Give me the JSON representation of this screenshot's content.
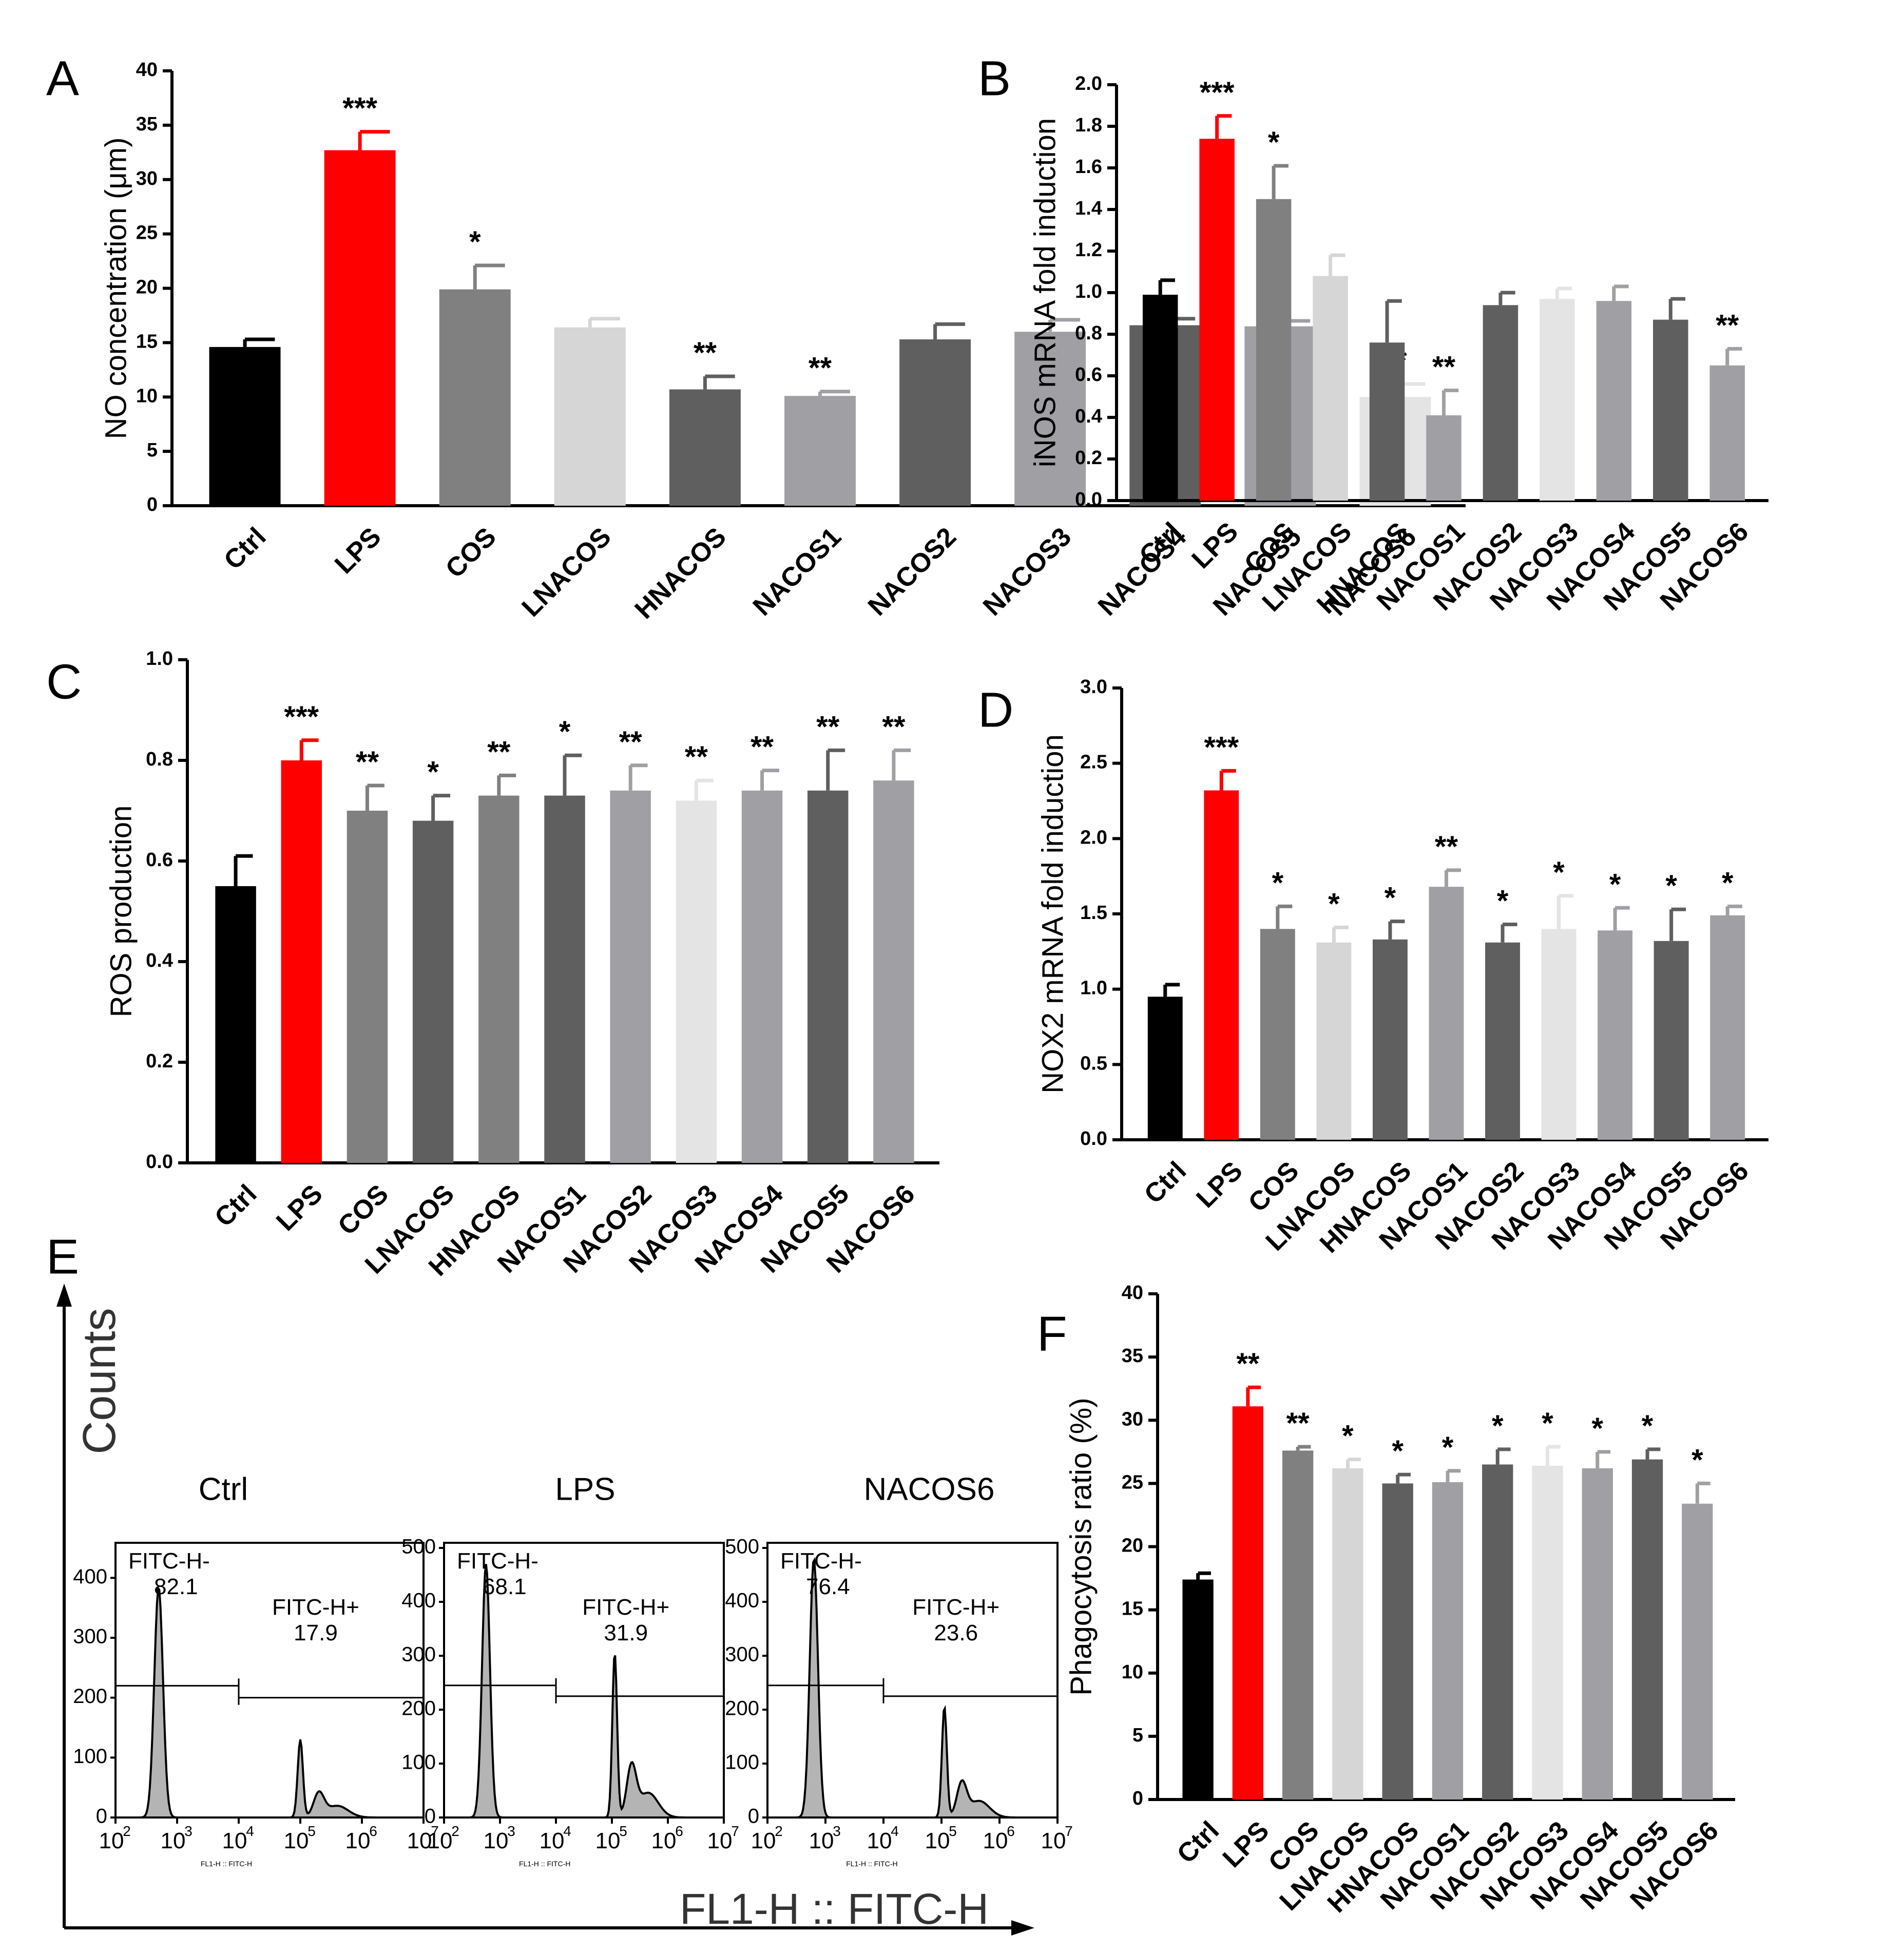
{
  "colors": {
    "black": "#000000",
    "red": "#ff0000",
    "g1": "#808080",
    "g2": "#d6d6d6",
    "g3": "#5f5f5f",
    "g4": "#a0a0a4",
    "g5": "#e4e4e4",
    "hist_fill": "#b4b4b4"
  },
  "chart_data": [
    {
      "panel": "A",
      "type": "bar",
      "ylabel": "NO concentration (μm)",
      "ylim": [
        0,
        40
      ],
      "yticks": [
        "0",
        "5",
        "10",
        "15",
        "20",
        "25",
        "30",
        "35",
        "40"
      ],
      "ytick_values": [
        0,
        5,
        10,
        15,
        20,
        25,
        30,
        35,
        40
      ],
      "categories": [
        "Ctrl",
        "LPS",
        "COS",
        "LNACOS",
        "HNACOS",
        "NACOS1",
        "NACOS2",
        "NACOS3",
        "NACOS4",
        "NACOS5",
        "NACOS6"
      ],
      "values": [
        14.6,
        32.7,
        19.9,
        16.4,
        10.7,
        10.1,
        15.3,
        16.0,
        16.6,
        16.5,
        10.0
      ],
      "errors": [
        0.7,
        1.7,
        2.2,
        0.8,
        1.2,
        0.4,
        1.4,
        1.1,
        0.6,
        0.5,
        1.2
      ],
      "significance": [
        "",
        "***",
        "*",
        "",
        "**",
        "**",
        "",
        "",
        "",
        "",
        "**"
      ],
      "colors": [
        "black",
        "red",
        "g1",
        "g2",
        "g3",
        "g4",
        "g3",
        "g4",
        "g3",
        "g4",
        "g5"
      ]
    },
    {
      "panel": "B",
      "type": "bar",
      "ylabel": "iNOS mRNA fold induction",
      "ylim": [
        0,
        2.0
      ],
      "yticks": [
        "0.0",
        "0.2",
        "0.4",
        "0.6",
        "0.8",
        "1.0",
        "1.2",
        "1.4",
        "1.6",
        "1.8",
        "2.0"
      ],
      "ytick_values": [
        0,
        0.2,
        0.4,
        0.6,
        0.8,
        1.0,
        1.2,
        1.4,
        1.6,
        1.8,
        2.0
      ],
      "categories": [
        "Ctrl",
        "LPS",
        "COS",
        "LNACOS",
        "HNACOS",
        "NACOS1",
        "NACOS2",
        "NACOS3",
        "NACOS4",
        "NACOS5",
        "NACOS6"
      ],
      "values": [
        0.99,
        1.74,
        1.45,
        1.08,
        0.76,
        0.41,
        0.94,
        0.97,
        0.96,
        0.87,
        0.65
      ],
      "errors": [
        0.07,
        0.11,
        0.16,
        0.1,
        0.2,
        0.12,
        0.06,
        0.05,
        0.07,
        0.1,
        0.08
      ],
      "significance": [
        "",
        "***",
        "*",
        "",
        "",
        "**",
        "",
        "",
        "",
        "",
        "**"
      ],
      "colors": [
        "black",
        "red",
        "g1",
        "g2",
        "g3",
        "g4",
        "g3",
        "g5",
        "g4",
        "g3",
        "g4"
      ]
    },
    {
      "panel": "C",
      "type": "bar",
      "ylabel": "ROS production",
      "ylim": [
        0,
        1.0
      ],
      "yticks": [
        "0.0",
        "0.2",
        "0.4",
        "0.6",
        "0.8",
        "1.0"
      ],
      "ytick_values": [
        0,
        0.2,
        0.4,
        0.6,
        0.8,
        1.0
      ],
      "categories": [
        "Ctrl",
        "LPS",
        "COS",
        "LNACOS",
        "HNACOS",
        "NACOS1",
        "NACOS2",
        "NACOS3",
        "NACOS4",
        "NACOS5",
        "NACOS6"
      ],
      "values": [
        0.55,
        0.8,
        0.7,
        0.68,
        0.73,
        0.73,
        0.74,
        0.72,
        0.74,
        0.74,
        0.76
      ],
      "errors": [
        0.06,
        0.04,
        0.05,
        0.05,
        0.04,
        0.08,
        0.05,
        0.04,
        0.04,
        0.08,
        0.06
      ],
      "significance": [
        "",
        "***",
        "**",
        "*",
        "**",
        "*",
        "**",
        "**",
        "**",
        "**",
        "**"
      ],
      "colors": [
        "black",
        "red",
        "g1",
        "g3",
        "g1",
        "g3",
        "g4",
        "g5",
        "g4",
        "g3",
        "g4"
      ]
    },
    {
      "panel": "D",
      "type": "bar",
      "ylabel": "NOX2 mRNA fold induction",
      "ylim": [
        0,
        3.0
      ],
      "yticks": [
        "0.0",
        "0.5",
        "1.0",
        "1.5",
        "2.0",
        "2.5",
        "3.0"
      ],
      "ytick_values": [
        0,
        0.5,
        1.0,
        1.5,
        2.0,
        2.5,
        3.0
      ],
      "categories": [
        "Ctrl",
        "LPS",
        "COS",
        "LNACOS",
        "HNACOS",
        "NACOS1",
        "NACOS2",
        "NACOS3",
        "NACOS4",
        "NACOS5",
        "NACOS6"
      ],
      "values": [
        0.95,
        2.32,
        1.4,
        1.31,
        1.33,
        1.68,
        1.31,
        1.4,
        1.39,
        1.32,
        1.49
      ],
      "errors": [
        0.08,
        0.13,
        0.15,
        0.1,
        0.12,
        0.11,
        0.12,
        0.22,
        0.15,
        0.21,
        0.06
      ],
      "significance": [
        "",
        "***",
        "*",
        "*",
        "*",
        "**",
        "*",
        "*",
        "*",
        "*",
        "*"
      ],
      "colors": [
        "black",
        "red",
        "g1",
        "g2",
        "g3",
        "g4",
        "g3",
        "g5",
        "g4",
        "g3",
        "g4"
      ]
    },
    {
      "panel": "F",
      "type": "bar",
      "ylabel": "Phagocytosis ratio (%)",
      "ylim": [
        0,
        40
      ],
      "yticks": [
        "0",
        "5",
        "10",
        "15",
        "20",
        "25",
        "30",
        "35",
        "40"
      ],
      "ytick_values": [
        0,
        5,
        10,
        15,
        20,
        25,
        30,
        35,
        40
      ],
      "categories": [
        "Ctrl",
        "LPS",
        "COS",
        "LNACOS",
        "HNACOS",
        "NACOS1",
        "NACOS2",
        "NACOS3",
        "NACOS4",
        "NACOS5",
        "NACOS6"
      ],
      "values": [
        17.4,
        31.1,
        27.6,
        26.2,
        25.0,
        25.1,
        26.5,
        26.4,
        26.2,
        26.9,
        23.4
      ],
      "errors": [
        0.5,
        1.5,
        0.3,
        0.7,
        0.7,
        0.9,
        1.2,
        1.5,
        1.3,
        0.8,
        1.6
      ],
      "significance": [
        "",
        "**",
        "**",
        "*",
        "*",
        "*",
        "*",
        "*",
        "*",
        "*",
        "*"
      ],
      "colors": [
        "black",
        "red",
        "g1",
        "g2",
        "g3",
        "g4",
        "g3",
        "g5",
        "g4",
        "g3",
        "g4"
      ]
    }
  ],
  "panel_e": {
    "panel": "E",
    "type": "histogram",
    "ylabel": "Counts",
    "xlabel": "FL1-H :: FITC-H",
    "mini_xlabel": "FL1-H :: FITC-H",
    "xtick_bases": [
      "10",
      "10",
      "10",
      "10",
      "10",
      "10"
    ],
    "xtick_exps": [
      "2",
      "3",
      "4",
      "5",
      "6",
      "7"
    ],
    "plots": [
      {
        "title": "Ctrl",
        "ymax": 450,
        "yticks": [
          "0",
          "100",
          "200",
          "300",
          "400"
        ],
        "ytick_values": [
          0,
          100,
          200,
          300,
          400
        ],
        "neg_label": "FITC-H-",
        "neg_value": "82.1",
        "pos_label": "FITC-H+",
        "pos_value": "17.9",
        "neg_peak_log10": 2.7,
        "neg_peak_count": 385,
        "pos_peak_log10": 5.0,
        "pos_peak_count": 130,
        "gate_neg_level": 220,
        "gate_pos_level": 200
      },
      {
        "title": "LPS",
        "ymax": 500,
        "yticks": [
          "0",
          "100",
          "200",
          "300",
          "400",
          "500"
        ],
        "ytick_values": [
          0,
          100,
          200,
          300,
          400,
          500
        ],
        "neg_label": "FITC-H-",
        "neg_value": "68.1",
        "pos_label": "FITC-H+",
        "pos_value": "31.9",
        "neg_peak_log10": 2.75,
        "neg_peak_count": 470,
        "pos_peak_log10": 5.05,
        "pos_peak_count": 305,
        "gate_neg_level": 245,
        "gate_pos_level": 225
      },
      {
        "title": "NACOS6",
        "ymax": 500,
        "yticks": [
          "0",
          "100",
          "200",
          "300",
          "400",
          "500"
        ],
        "ytick_values": [
          0,
          100,
          200,
          300,
          400,
          500
        ],
        "neg_label": "FITC-H-",
        "neg_value": "76.4",
        "pos_label": "FITC-H+",
        "pos_value": "23.6",
        "neg_peak_log10": 2.8,
        "neg_peak_count": 480,
        "pos_peak_log10": 5.05,
        "pos_peak_count": 205,
        "gate_neg_level": 245,
        "gate_pos_level": 225
      }
    ]
  }
}
